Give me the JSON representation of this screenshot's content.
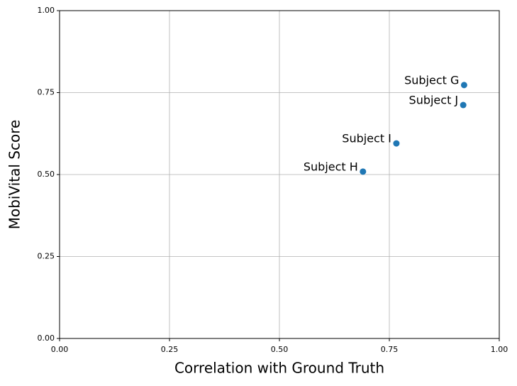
{
  "chart_data": {
    "type": "scatter",
    "xlabel": "Correlation with Ground Truth",
    "ylabel": "MobiVital Score",
    "x": [
      0.92,
      0.918,
      0.766,
      0.69
    ],
    "values": [
      0.773,
      0.712,
      0.595,
      0.509
    ],
    "labels": [
      "Subject G",
      "Subject J",
      "Subject I",
      "Subject H"
    ],
    "color": "#1f77b4",
    "xlim": [
      0,
      1
    ],
    "ylim": [
      0,
      1
    ],
    "xticks": [
      {
        "value": 0,
        "label": "0.00"
      },
      {
        "value": 0.25,
        "label": "0.25"
      },
      {
        "value": 0.5,
        "label": "0.50"
      },
      {
        "value": 0.75,
        "label": "0.75"
      },
      {
        "value": 1,
        "label": "1.00"
      }
    ],
    "yticks": [
      {
        "value": 0,
        "label": "0.00"
      },
      {
        "value": 0.25,
        "label": "0.25"
      },
      {
        "value": 0.5,
        "label": "0.50"
      },
      {
        "value": 0.75,
        "label": "0.75"
      },
      {
        "value": 1,
        "label": "1.00"
      }
    ],
    "grid": true
  }
}
